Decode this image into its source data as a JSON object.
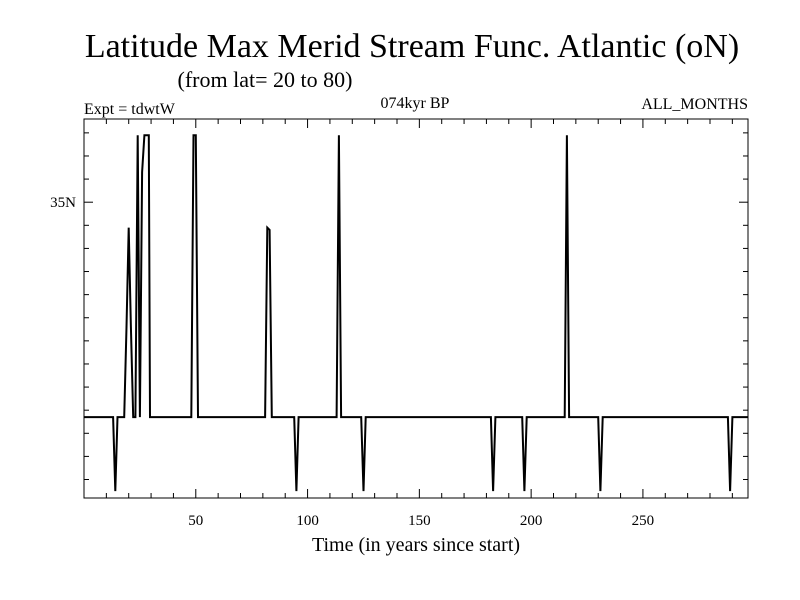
{
  "chart_data": {
    "type": "line",
    "title": "Latitude Max Merid Stream Func. Atlantic (oN)",
    "subtitle": "(from lat= 20 to 80)",
    "annotations": {
      "left": "Expt = tdwtW",
      "center": "074kyr BP",
      "right": "ALL_MONTHS"
    },
    "xlabel": "Time (in years since start)",
    "ylabel": "",
    "xlim": [
      0,
      297
    ],
    "ylim": [
      22.2,
      38.6
    ],
    "x_ticks": [
      50,
      100,
      150,
      200,
      250
    ],
    "x_tick_labels": [
      "50",
      "100",
      "150",
      "200",
      "250"
    ],
    "y_ticks": [
      35
    ],
    "y_tick_labels": [
      "35N"
    ],
    "grid": false,
    "series": [
      {
        "color": "#000000",
        "points": [
          [
            0,
            25.7
          ],
          [
            13,
            25.7
          ],
          [
            14,
            22.5
          ],
          [
            15,
            25.7
          ],
          [
            18,
            25.7
          ],
          [
            19,
            29.6
          ],
          [
            20,
            33.9
          ],
          [
            21,
            29.6
          ],
          [
            22,
            25.7
          ],
          [
            23,
            25.7
          ],
          [
            24,
            37.9
          ],
          [
            25,
            25.7
          ],
          [
            26,
            36.3
          ],
          [
            27,
            37.9
          ],
          [
            29,
            37.9
          ],
          [
            29.5,
            25.7
          ],
          [
            48,
            25.7
          ],
          [
            49,
            37.9
          ],
          [
            50,
            37.9
          ],
          [
            51,
            25.7
          ],
          [
            81,
            25.7
          ],
          [
            82,
            33.9
          ],
          [
            83,
            33.8
          ],
          [
            84,
            25.7
          ],
          [
            94,
            25.7
          ],
          [
            95,
            22.5
          ],
          [
            96,
            25.7
          ],
          [
            113,
            25.7
          ],
          [
            114,
            37.9
          ],
          [
            115,
            25.7
          ],
          [
            124,
            25.7
          ],
          [
            125,
            22.5
          ],
          [
            126,
            25.7
          ],
          [
            182,
            25.7
          ],
          [
            183,
            22.5
          ],
          [
            184,
            25.7
          ],
          [
            196,
            25.7
          ],
          [
            197,
            22.5
          ],
          [
            198,
            25.7
          ],
          [
            215,
            25.7
          ],
          [
            216,
            37.9
          ],
          [
            217,
            25.7
          ],
          [
            230,
            25.7
          ],
          [
            231,
            22.5
          ],
          [
            232,
            25.7
          ],
          [
            288,
            25.7
          ],
          [
            289,
            22.5
          ],
          [
            290,
            25.7
          ],
          [
            297,
            25.7
          ]
        ]
      }
    ]
  }
}
